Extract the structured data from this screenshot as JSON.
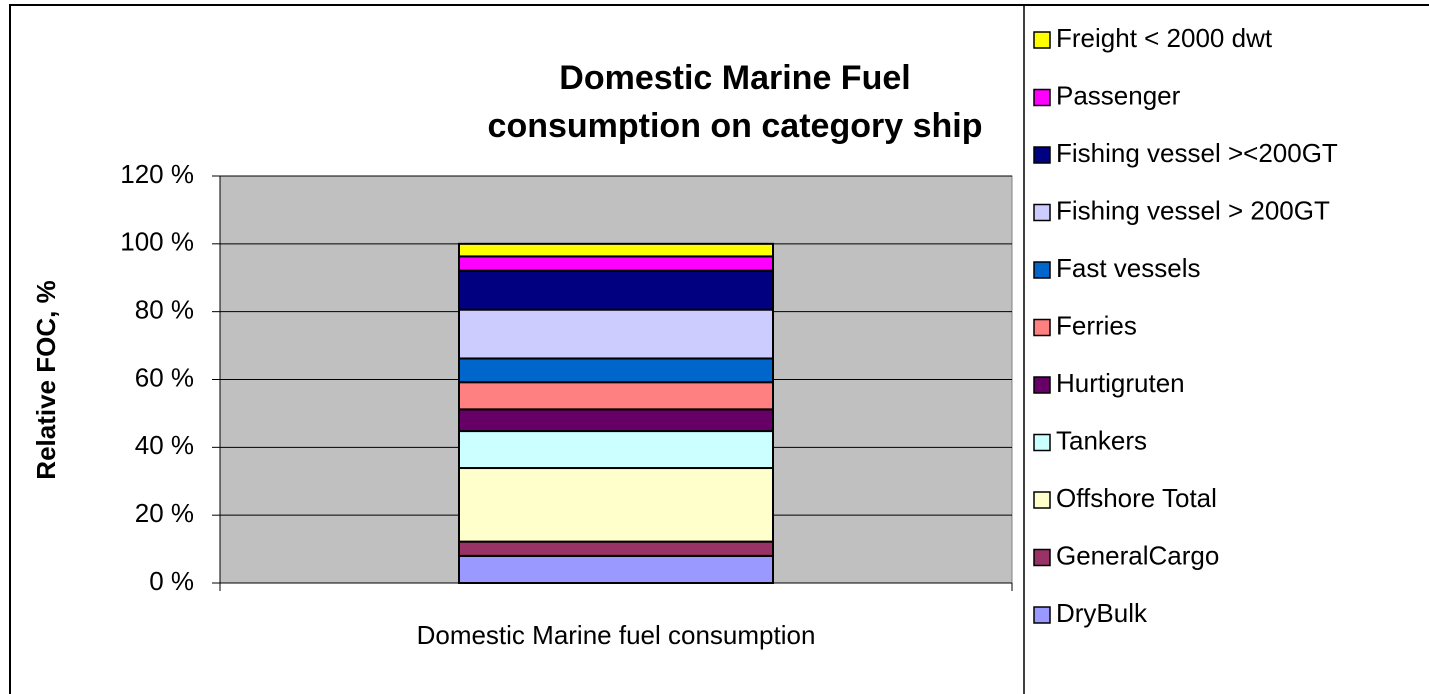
{
  "chart_data": {
    "type": "stacked_bar",
    "title": [
      "Domestic Marine Fuel",
      "consumption on category ship"
    ],
    "ylabel": "Relative FOC, %",
    "categories": [
      "Domestic Marine fuel consumption"
    ],
    "ylim": [
      0,
      120
    ],
    "yticks": [
      {
        "value": 0,
        "label": "0 %"
      },
      {
        "value": 20,
        "label": "20 %"
      },
      {
        "value": 40,
        "label": "40 %"
      },
      {
        "value": 60,
        "label": "60 %"
      },
      {
        "value": 80,
        "label": "80 %"
      },
      {
        "value": 100,
        "label": "100 %"
      },
      {
        "value": 120,
        "label": "120 %"
      }
    ],
    "grid": true,
    "legend": "right",
    "series": [
      {
        "name": "DryBulk",
        "color": "#9999ff",
        "values": [
          8.0
        ]
      },
      {
        "name": "GeneralCargo",
        "color": "#993366",
        "values": [
          4.2
        ]
      },
      {
        "name": "Offshore Total",
        "color": "#ffffcc",
        "values": [
          21.7
        ]
      },
      {
        "name": "Tankers",
        "color": "#ccffff",
        "values": [
          10.9
        ]
      },
      {
        "name": "Hurtigruten",
        "color": "#660066",
        "values": [
          6.4
        ]
      },
      {
        "name": "Ferries",
        "color": "#ff8080",
        "values": [
          8.0
        ]
      },
      {
        "name": "Fast vessels",
        "color": "#0066cc",
        "values": [
          7.0
        ]
      },
      {
        "name": "Fishing vessel > 200GT",
        "color": "#ccccff",
        "values": [
          14.4
        ]
      },
      {
        "name": "Fishing vessel ><200GT",
        "color": "#000080",
        "values": [
          11.5
        ]
      },
      {
        "name": "Passenger",
        "color": "#ff00ff",
        "values": [
          4.2
        ]
      },
      {
        "name": "Freight < 2000 dwt",
        "color": "#ffff00",
        "values": [
          3.7
        ]
      }
    ]
  }
}
